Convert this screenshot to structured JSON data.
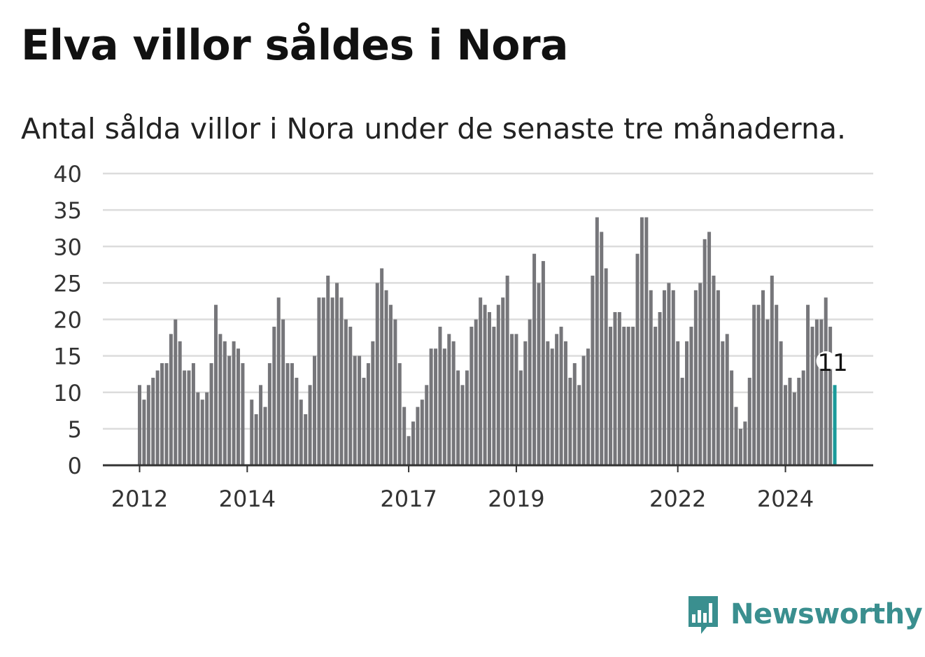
{
  "title": "Elva villor såldes i Nora",
  "subtitle": "Antal sålda villor i Nora under de senaste tre månaderna.",
  "brand": {
    "name": "Newsworthy",
    "color": "#3a8f8f"
  },
  "colors": {
    "bar": "#76767a",
    "highlight": "#1a9a9a",
    "grid": "#dcdcdc",
    "axis": "#333333"
  },
  "chart_data": {
    "type": "bar",
    "x_unit": "month",
    "x_start": "2012-01",
    "values": [
      11,
      9,
      11,
      12,
      13,
      14,
      14,
      18,
      20,
      17,
      13,
      13,
      14,
      10,
      9,
      10,
      14,
      22,
      18,
      17,
      15,
      17,
      16,
      14,
      0,
      9,
      7,
      11,
      8,
      14,
      19,
      23,
      20,
      14,
      14,
      12,
      9,
      7,
      11,
      15,
      23,
      23,
      26,
      23,
      25,
      23,
      20,
      19,
      15,
      15,
      12,
      14,
      17,
      25,
      27,
      24,
      22,
      20,
      14,
      8,
      4,
      6,
      8,
      9,
      11,
      16,
      16,
      19,
      16,
      18,
      17,
      13,
      11,
      13,
      19,
      20,
      23,
      22,
      21,
      19,
      22,
      23,
      26,
      18,
      18,
      13,
      17,
      20,
      29,
      25,
      28,
      17,
      16,
      18,
      19,
      17,
      12,
      14,
      11,
      15,
      16,
      26,
      34,
      32,
      27,
      19,
      21,
      21,
      19,
      19,
      19,
      29,
      34,
      34,
      24,
      19,
      21,
      24,
      25,
      24,
      17,
      12,
      17,
      19,
      24,
      25,
      31,
      32,
      26,
      24,
      17,
      18,
      13,
      8,
      5,
      6,
      12,
      22,
      22,
      24,
      20,
      26,
      22,
      17,
      11,
      12,
      10,
      12,
      13,
      22,
      19,
      20,
      20,
      23,
      19,
      11
    ],
    "highlight_last": true,
    "annotation": "11",
    "y_ticks": [
      0,
      5,
      10,
      15,
      20,
      25,
      30,
      35,
      40
    ],
    "ylim": [
      0,
      40
    ],
    "x_ticks": [
      {
        "label": "2012",
        "index": 0
      },
      {
        "label": "2014",
        "index": 24
      },
      {
        "label": "2017",
        "index": 60
      },
      {
        "label": "2019",
        "index": 84
      },
      {
        "label": "2022",
        "index": 120
      },
      {
        "label": "2024",
        "index": 144
      }
    ],
    "grid": true
  }
}
